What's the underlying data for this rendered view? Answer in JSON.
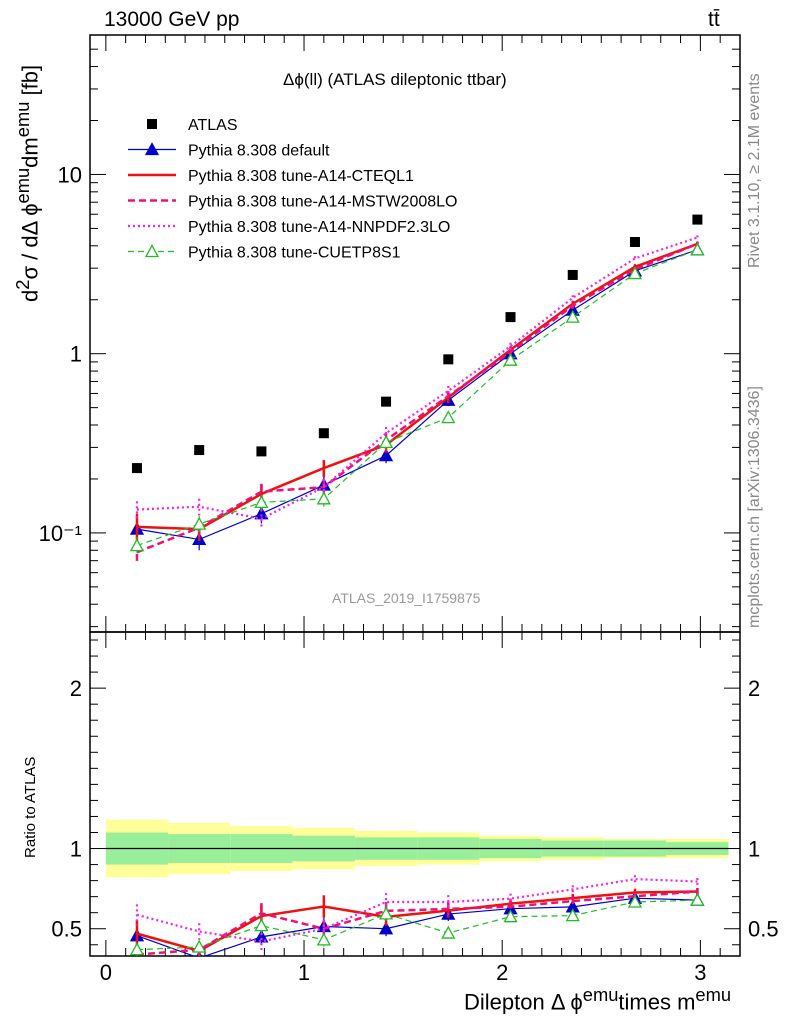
{
  "header": {
    "energy": "13000 GeV pp",
    "process": "tt̄",
    "side_top": "Rivet 3.1.10, ≥ 2.1M events",
    "side_bottom": "mcplots.cern.ch [arXiv:1306.3436]",
    "plot_title": "Δϕ(ll) (ATLAS dileptonic ttbar)",
    "analysis_id": "ATLAS_2019_I1759875"
  },
  "axes": {
    "main_ylabel_html": "d<sup>2</sup>σ / dΔ ϕ<sup>emu</sup>dm<sup>emu</sup> [fb]",
    "ratio_ylabel": "Ratio to ATLAS",
    "xlabel_html": "Dilepton Δ ϕ<sup>emu</sup>times m<sup>emu</sup>",
    "main_ytick_labels": [
      "10⁻¹",
      "1",
      "10"
    ],
    "ratio_ytick_labels": [
      "0.5",
      "1",
      "2"
    ],
    "xtick_labels": [
      "0",
      "1",
      "2",
      "3"
    ]
  },
  "colors": {
    "atlas": "#000000",
    "default": "#0000cc",
    "cteql1": "#ee1111",
    "mstw": "#ee1177",
    "nnpdf": "#ee22ee",
    "cuetp": "#22bb22",
    "band_inner": "#99ee99",
    "band_outer": "#ffff99"
  },
  "chart_data": {
    "type": "scatter",
    "x_range": [
      -0.08,
      3.2
    ],
    "y_range": [
      0.028,
      60
    ],
    "y_scale": "log",
    "ratio_range": [
      0.33,
      2.35
    ],
    "legend_position": "top-left",
    "bin_edges": [
      0,
      0.314,
      0.628,
      0.942,
      1.257,
      1.571,
      1.885,
      2.199,
      2.513,
      2.827,
      3.142
    ],
    "x": [
      0.157,
      0.471,
      0.785,
      1.1,
      1.414,
      1.728,
      2.042,
      2.356,
      2.67,
      2.985
    ],
    "band_inner_frac": [
      0.1,
      0.09,
      0.09,
      0.08,
      0.07,
      0.07,
      0.06,
      0.05,
      0.05,
      0.04
    ],
    "band_outer_frac": [
      0.18,
      0.16,
      0.14,
      0.13,
      0.11,
      0.1,
      0.08,
      0.07,
      0.06,
      0.06
    ],
    "series": [
      {
        "name": "ATLAS",
        "style": "marker",
        "color_key": "atlas",
        "values": [
          0.23,
          0.29,
          0.285,
          0.36,
          0.54,
          0.93,
          1.6,
          2.75,
          4.2,
          5.6
        ]
      },
      {
        "name": "Pythia 8.308 default",
        "style": "solid-thin-tri",
        "color_key": "default",
        "values": [
          0.105,
          0.092,
          0.128,
          0.185,
          0.27,
          0.55,
          1.0,
          1.75,
          2.9,
          3.8
        ],
        "errors": [
          0.012,
          0.012,
          0.015,
          0.02,
          0.025,
          0.04,
          0.05,
          0.07,
          0.1,
          0.12
        ]
      },
      {
        "name": "Pythia 8.308 tune-A14-CTEQL1",
        "style": "solid-thick",
        "color_key": "cteql1",
        "values": [
          0.108,
          0.105,
          0.165,
          0.23,
          0.31,
          0.57,
          1.05,
          1.9,
          3.05,
          4.1
        ],
        "errors": [
          0.02,
          0.015,
          0.02,
          0.025,
          0.03,
          0.04,
          0.05,
          0.07,
          0.1,
          0.12
        ]
      },
      {
        "name": "Pythia 8.308 tune-A14-MSTW2008LO",
        "style": "dashed-thick",
        "color_key": "mstw",
        "values": [
          0.078,
          0.107,
          0.17,
          0.18,
          0.33,
          0.58,
          1.02,
          1.85,
          2.95,
          4.1
        ],
        "errors": [
          0.01,
          0.012,
          0.018,
          0.02,
          0.03,
          0.04,
          0.05,
          0.07,
          0.1,
          0.12
        ]
      },
      {
        "name": "Pythia 8.308 tune-A14-NNPDF2.3LO",
        "style": "dotted",
        "color_key": "nnpdf",
        "values": [
          0.135,
          0.14,
          0.12,
          0.18,
          0.36,
          0.62,
          1.1,
          2.05,
          3.4,
          4.45
        ],
        "errors": [
          0.015,
          0.015,
          0.015,
          0.02,
          0.03,
          0.04,
          0.05,
          0.07,
          0.1,
          0.12
        ]
      },
      {
        "name": "Pythia 8.308 tune-CUETP8S1",
        "style": "dashed-thin-open-tri",
        "color_key": "cuetp",
        "values": [
          0.085,
          0.112,
          0.148,
          0.155,
          0.32,
          0.44,
          0.92,
          1.6,
          2.8,
          3.8
        ],
        "errors": [
          0.01,
          0.012,
          0.015,
          0.015,
          0.03,
          0.03,
          0.04,
          0.06,
          0.09,
          0.1
        ]
      }
    ]
  }
}
